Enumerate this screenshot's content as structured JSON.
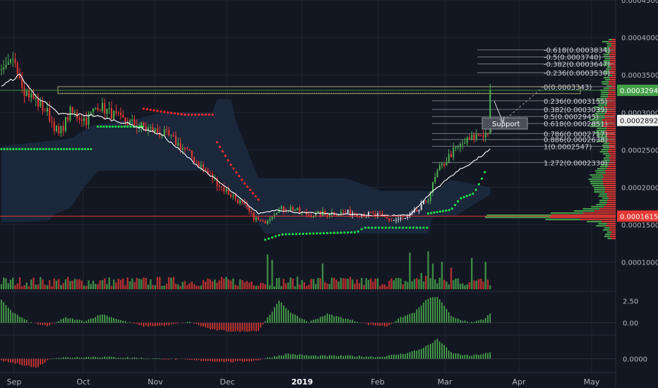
{
  "colors": {
    "background": "#131722",
    "grid": "#1f2430",
    "up": "#26a69a",
    "bull": "#4caf50",
    "bear": "#e53935",
    "price_line": "#ffffff",
    "support_dots": "#21e04a",
    "resist_dots": "#ff2a2a",
    "cloud": "#1d2a3f",
    "fib_line": "#8a8f99",
    "axis_text": "#b2b5be"
  },
  "chart_data": {
    "type": "candlestick",
    "title": "",
    "xlabel": "",
    "ylabel": "",
    "price_axis": {
      "ylim": [
        6.2e-05,
        0.00045
      ],
      "ticks": [
        "0.0001000",
        "0.0001500",
        "0.0002000",
        "0.0002500",
        "0.0003000",
        "0.0003500",
        "0.0004000",
        "0.0004500"
      ]
    },
    "time_axis": {
      "labels": [
        "Sep",
        "Oct",
        "Nov",
        "Dec",
        "2019",
        "Feb",
        "Mar",
        "Apr",
        "May"
      ]
    },
    "price_labels": {
      "current": "0.0003294",
      "middle": "0.0002892",
      "lower": "0.0001615"
    },
    "fib_levels": [
      {
        "label": "-0.618(0.0003834)",
        "value": 0.0003834
      },
      {
        "label": "-0.5(0.0003740)",
        "value": 0.000374
      },
      {
        "label": "-0.382(0.0003647)",
        "value": 0.0003647
      },
      {
        "label": "-0.236(0.0003530)",
        "value": 0.000353
      },
      {
        "label": "0(0.0003343)",
        "value": 0.0003343
      },
      {
        "label": "0.236(0.0003155)",
        "value": 0.0003155
      },
      {
        "label": "0.382(0.0003039)",
        "value": 0.0003039
      },
      {
        "label": "0.5(0.0002945)",
        "value": 0.0002945
      },
      {
        "label": "0.618(0.0002851)",
        "value": 0.0002851
      },
      {
        "label": "0.786(0.0002717)",
        "value": 0.0002717
      },
      {
        "label": "0.886(0.0002638)",
        "value": 0.0002638
      },
      {
        "label": "1(0.0002547)",
        "value": 0.0002547
      },
      {
        "label": "1.272(0.0002330)",
        "value": 0.000233
      }
    ],
    "annotation": {
      "text": "Support",
      "value": 0.0002852
    },
    "anchors": [
      [
        0,
        0.00035
      ],
      [
        6,
        0.00037
      ],
      [
        10,
        0.00033
      ],
      [
        20,
        0.0003
      ],
      [
        25,
        0.00027
      ],
      [
        30,
        0.0003
      ],
      [
        37,
        0.00029
      ],
      [
        42,
        0.00031
      ],
      [
        52,
        0.00029
      ],
      [
        62,
        0.00028
      ],
      [
        72,
        0.00027
      ],
      [
        80,
        0.00025
      ],
      [
        88,
        0.000225
      ],
      [
        96,
        0.0002
      ],
      [
        104,
        0.00018
      ],
      [
        110,
        0.00016
      ],
      [
        114,
        0.000152
      ],
      [
        120,
        0.00017
      ],
      [
        126,
        0.000172
      ],
      [
        134,
        0.000163
      ],
      [
        144,
        0.000166
      ],
      [
        154,
        0.000166
      ],
      [
        164,
        0.000162
      ],
      [
        170,
        0.000156
      ],
      [
        176,
        0.000158
      ],
      [
        182,
        0.00017
      ],
      [
        186,
        0.000186
      ],
      [
        190,
        0.00022
      ],
      [
        196,
        0.000245
      ],
      [
        202,
        0.00026
      ],
      [
        208,
        0.00027
      ],
      [
        212,
        0.000272
      ],
      [
        213,
        0.0003294
      ]
    ],
    "ma_anchors": [
      [
        0,
        0.000335
      ],
      [
        8,
        0.00035
      ],
      [
        14,
        0.000325
      ],
      [
        25,
        0.000298
      ],
      [
        40,
        0.000296
      ],
      [
        55,
        0.000285
      ],
      [
        70,
        0.00027
      ],
      [
        85,
        0.00023
      ],
      [
        100,
        0.000195
      ],
      [
        112,
        0.000165
      ],
      [
        120,
        0.00017
      ],
      [
        130,
        0.000166
      ],
      [
        150,
        0.000164
      ],
      [
        165,
        0.000162
      ],
      [
        178,
        0.000163
      ],
      [
        188,
        0.000195
      ],
      [
        198,
        0.00022
      ],
      [
        206,
        0.000235
      ],
      [
        213,
        0.00025
      ]
    ],
    "volume": {
      "spikes": [
        [
          116,
          0.95
        ],
        [
          118,
          0.8
        ],
        [
          140,
          0.7
        ],
        [
          178,
          1.0
        ],
        [
          186,
          0.9
        ],
        [
          205,
          0.85
        ],
        [
          211,
          0.75
        ],
        [
          188,
          0.55
        ],
        [
          192,
          0.6
        ],
        [
          196,
          0.5
        ]
      ]
    },
    "oscillator_1": {
      "ticks": [
        "2.50",
        "0.00"
      ],
      "range": [
        -1.0,
        3.2
      ],
      "anchors": [
        [
          0,
          2.6
        ],
        [
          5,
          1.2
        ],
        [
          12,
          0.1
        ],
        [
          20,
          -0.4
        ],
        [
          28,
          0.6
        ],
        [
          36,
          0.2
        ],
        [
          44,
          1.0
        ],
        [
          52,
          0.3
        ],
        [
          62,
          -0.4
        ],
        [
          72,
          -0.3
        ],
        [
          82,
          0.1
        ],
        [
          92,
          -0.8
        ],
        [
          102,
          -1.0
        ],
        [
          112,
          -0.9
        ],
        [
          116,
          0.6
        ],
        [
          121,
          2.5
        ],
        [
          127,
          1.0
        ],
        [
          134,
          0.1
        ],
        [
          142,
          1.0
        ],
        [
          150,
          0.5
        ],
        [
          160,
          -0.2
        ],
        [
          168,
          -0.4
        ],
        [
          174,
          0.6
        ],
        [
          180,
          1.2
        ],
        [
          186,
          2.8
        ],
        [
          190,
          3.0
        ],
        [
          196,
          0.8
        ],
        [
          204,
          0.0
        ],
        [
          210,
          0.4
        ],
        [
          213,
          1.0
        ]
      ]
    },
    "oscillator_2": {
      "ticks": [
        "0.0000"
      ],
      "range": [
        -1.0,
        2.0
      ],
      "anchors": [
        [
          0,
          -0.2
        ],
        [
          10,
          -0.6
        ],
        [
          15,
          -0.9
        ],
        [
          22,
          0.1
        ],
        [
          40,
          0.2
        ],
        [
          60,
          0.1
        ],
        [
          80,
          -0.1
        ],
        [
          100,
          -0.3
        ],
        [
          110,
          -0.2
        ],
        [
          118,
          0.2
        ],
        [
          125,
          0.5
        ],
        [
          135,
          0.3
        ],
        [
          150,
          0.3
        ],
        [
          165,
          0.2
        ],
        [
          175,
          0.5
        ],
        [
          182,
          0.9
        ],
        [
          188,
          1.6
        ],
        [
          190,
          2.0
        ],
        [
          196,
          0.6
        ],
        [
          204,
          0.3
        ],
        [
          213,
          0.6
        ]
      ]
    }
  }
}
